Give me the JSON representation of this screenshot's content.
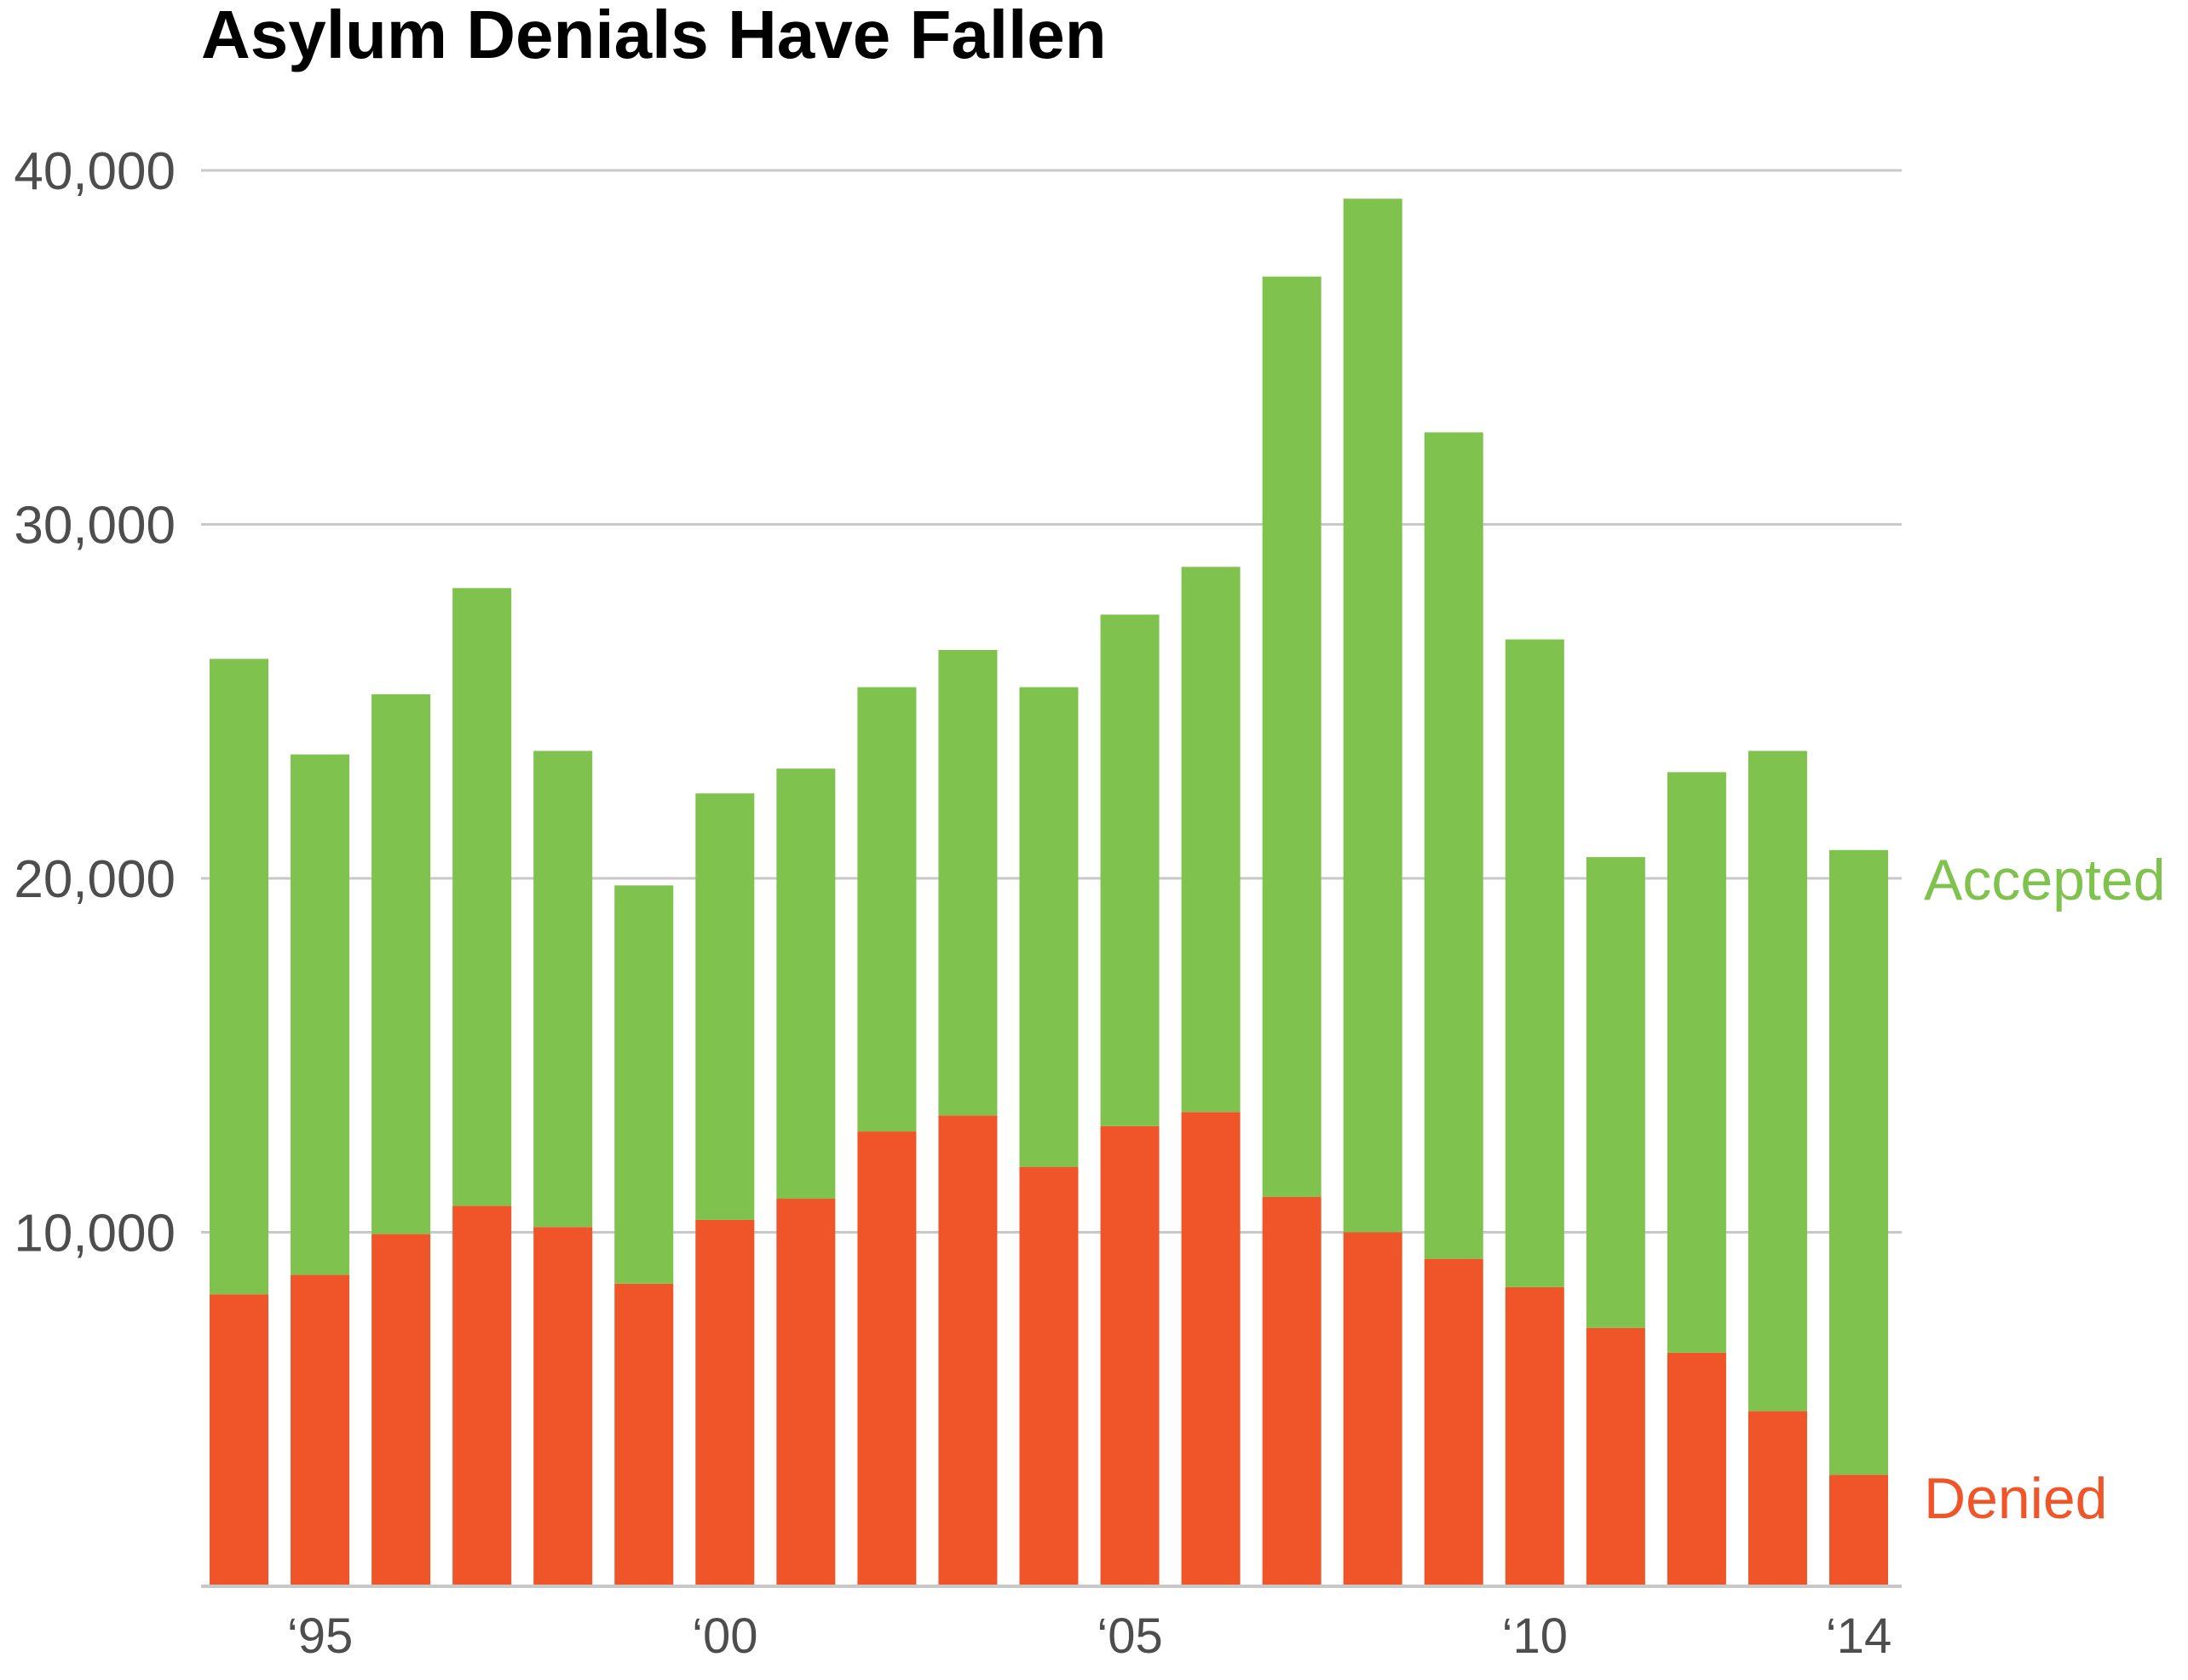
{
  "chart_data": {
    "type": "bar",
    "stacked": true,
    "title": "Asylum Denials Have Fallen",
    "xlabel": "",
    "ylabel": "",
    "ylim": [
      0,
      40000
    ],
    "grid": true,
    "legend": "direct labels at right end of bars",
    "y_ticks": [
      "10,000",
      "20,000",
      "30,000",
      "40,000"
    ],
    "y_tick_values": [
      10000,
      20000,
      30000,
      40000
    ],
    "x_tick_labels": [
      {
        "year": 1995,
        "label": "‘95"
      },
      {
        "year": 2000,
        "label": "‘00"
      },
      {
        "year": 2005,
        "label": "‘05"
      },
      {
        "year": 2010,
        "label": "‘10"
      },
      {
        "year": 2014,
        "label": "‘14"
      }
    ],
    "categories": [
      1994,
      1995,
      1996,
      1997,
      1998,
      1999,
      2000,
      2001,
      2002,
      2003,
      2004,
      2005,
      2006,
      2007,
      2008,
      2009,
      2010,
      2011,
      2012,
      2013,
      2014
    ],
    "series": [
      {
        "name": "Denied",
        "color": "#f0552a",
        "values": [
          8250,
          8800,
          9950,
          10750,
          10150,
          8550,
          10350,
          10950,
          12850,
          13300,
          11850,
          13000,
          13400,
          11000,
          10000,
          9250,
          8450,
          7300,
          6600,
          4950,
          3150
        ]
      },
      {
        "name": "Accepted",
        "color": "#7fc24e",
        "values": [
          17950,
          14700,
          15250,
          17450,
          13450,
          11250,
          12050,
          12150,
          12550,
          13150,
          13550,
          14450,
          15400,
          26000,
          29200,
          23350,
          18300,
          13300,
          16400,
          18650,
          17650
        ]
      }
    ]
  }
}
